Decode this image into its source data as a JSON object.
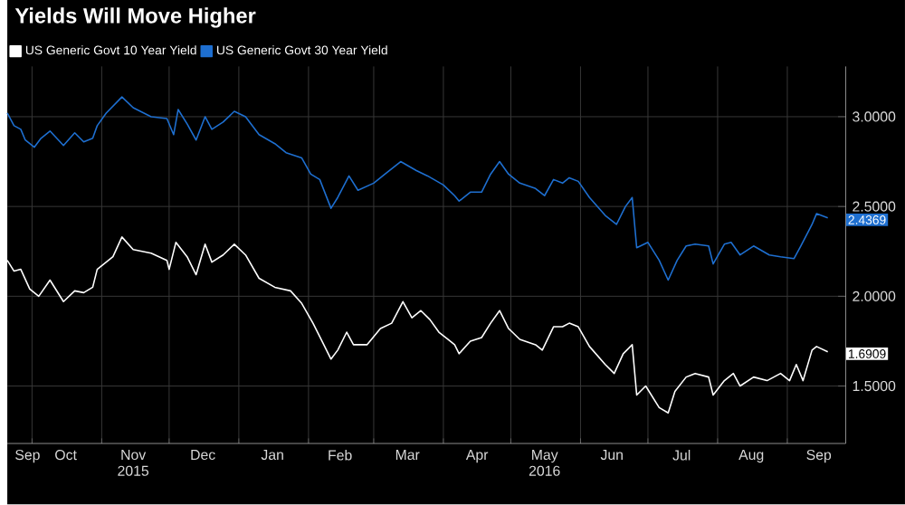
{
  "chart_data": {
    "type": "line",
    "title": "Yields Will Move Higher",
    "x": [
      "2015-09-20",
      "2015-09-23",
      "2015-09-26",
      "2015-09-30",
      "2015-10-04",
      "2015-10-09",
      "2015-10-15",
      "2015-10-20",
      "2015-10-24",
      "2015-10-28",
      "2015-10-30",
      "2015-11-06",
      "2015-11-10",
      "2015-11-15",
      "2015-11-23",
      "2015-11-30",
      "2015-12-01",
      "2015-12-04",
      "2015-12-09",
      "2015-12-13",
      "2015-12-17",
      "2015-12-20",
      "2015-12-25",
      "2015-12-30",
      "2016-01-04",
      "2016-01-10",
      "2016-01-17",
      "2016-01-24",
      "2016-01-29",
      "2016-02-03",
      "2016-02-07",
      "2016-02-11",
      "2016-02-14",
      "2016-02-18",
      "2016-02-21",
      "2016-02-27",
      "2016-03-04",
      "2016-03-09",
      "2016-03-14",
      "2016-03-18",
      "2016-03-22",
      "2016-03-26",
      "2016-03-30",
      "2016-04-03",
      "2016-04-06",
      "2016-04-08",
      "2016-04-13",
      "2016-04-18",
      "2016-04-22",
      "2016-04-26",
      "2016-04-30",
      "2016-05-05",
      "2016-05-12",
      "2016-05-15",
      "2016-05-20",
      "2016-05-24",
      "2016-05-27",
      "2016-05-31",
      "2016-06-05",
      "2016-06-12",
      "2016-06-16",
      "2016-06-20",
      "2016-06-24",
      "2016-06-26",
      "2016-06-30",
      "2016-07-06",
      "2016-07-10",
      "2016-07-13",
      "2016-07-18",
      "2016-07-22",
      "2016-07-28",
      "2016-07-30",
      "2016-08-04",
      "2016-08-08",
      "2016-08-11",
      "2016-08-17",
      "2016-08-23",
      "2016-08-29",
      "2016-09-02",
      "2016-09-05",
      "2016-09-08",
      "2016-09-12",
      "2016-09-14",
      "2016-09-19"
    ],
    "series": [
      {
        "name": "US Generic Govt 10 Year Yield",
        "color": "#ffffff",
        "values": [
          2.2,
          2.14,
          2.15,
          2.04,
          2.0,
          2.09,
          1.97,
          2.03,
          2.02,
          2.05,
          2.15,
          2.22,
          2.33,
          2.26,
          2.24,
          2.2,
          2.15,
          2.3,
          2.22,
          2.12,
          2.29,
          2.19,
          2.23,
          2.29,
          2.23,
          2.1,
          2.05,
          2.03,
          1.96,
          1.85,
          1.75,
          1.65,
          1.7,
          1.8,
          1.73,
          1.73,
          1.82,
          1.85,
          1.97,
          1.88,
          1.92,
          1.87,
          1.8,
          1.76,
          1.73,
          1.68,
          1.75,
          1.77,
          1.85,
          1.92,
          1.82,
          1.76,
          1.73,
          1.7,
          1.83,
          1.83,
          1.85,
          1.83,
          1.72,
          1.62,
          1.57,
          1.68,
          1.73,
          1.45,
          1.5,
          1.38,
          1.35,
          1.47,
          1.55,
          1.57,
          1.55,
          1.45,
          1.53,
          1.57,
          1.5,
          1.55,
          1.53,
          1.57,
          1.53,
          1.62,
          1.53,
          1.7,
          1.72,
          1.6909
        ],
        "value_labels": [
          null,
          null,
          null,
          null,
          null,
          null,
          null,
          null,
          null,
          null,
          null,
          null,
          null,
          null,
          null,
          null,
          null,
          null,
          null,
          null,
          null,
          null,
          null,
          null,
          null,
          null,
          null,
          null,
          null,
          null,
          null,
          null,
          null,
          null,
          null,
          null,
          null,
          null,
          null,
          null,
          null,
          null,
          null,
          null,
          null,
          null,
          null,
          null,
          null,
          null,
          null,
          null,
          null,
          null,
          null,
          null,
          null,
          null,
          null,
          null,
          null,
          null,
          null,
          null,
          null,
          null,
          null,
          null,
          null,
          null,
          null,
          null,
          null,
          null,
          null,
          null,
          null,
          null,
          null,
          null,
          null,
          null,
          null,
          "1.6909"
        ]
      },
      {
        "name": "US Generic Govt 30 Year Yield",
        "color": "#1e6fd0",
        "x": [
          "2015-09-20",
          "2015-09-23",
          "2015-09-26",
          "2015-09-28",
          "2015-10-02",
          "2015-10-05",
          "2015-10-09",
          "2015-10-15",
          "2015-10-20",
          "2015-10-24",
          "2015-10-28",
          "2015-10-30",
          "2015-11-03",
          "2015-11-10",
          "2015-11-15",
          "2015-11-23",
          "2015-11-30",
          "2015-12-03",
          "2015-12-05",
          "2015-12-09",
          "2015-12-13",
          "2015-12-17",
          "2015-12-20",
          "2015-12-25",
          "2015-12-30",
          "2016-01-04",
          "2016-01-10",
          "2016-01-17",
          "2016-01-22",
          "2016-01-29",
          "2016-02-02",
          "2016-02-06",
          "2016-02-11",
          "2016-02-14",
          "2016-02-19",
          "2016-02-23",
          "2016-03-01",
          "2016-03-06",
          "2016-03-13",
          "2016-03-20",
          "2016-03-25",
          "2016-04-01",
          "2016-04-06",
          "2016-04-08",
          "2016-04-13",
          "2016-04-18",
          "2016-04-22",
          "2016-04-26",
          "2016-04-30",
          "2016-05-05",
          "2016-05-12",
          "2016-05-16",
          "2016-05-20",
          "2016-05-24",
          "2016-05-27",
          "2016-05-31",
          "2016-06-05",
          "2016-06-12",
          "2016-06-17",
          "2016-06-21",
          "2016-06-24",
          "2016-06-26",
          "2016-07-01",
          "2016-07-06",
          "2016-07-10",
          "2016-07-14",
          "2016-07-18",
          "2016-07-22",
          "2016-07-28",
          "2016-07-30",
          "2016-08-04",
          "2016-08-07",
          "2016-08-11",
          "2016-08-17",
          "2016-08-24",
          "2016-08-29",
          "2016-09-04",
          "2016-09-07",
          "2016-09-12",
          "2016-09-14",
          "2016-09-19"
        ],
        "values": [
          3.02,
          2.95,
          2.93,
          2.87,
          2.83,
          2.88,
          2.92,
          2.84,
          2.91,
          2.86,
          2.88,
          2.95,
          3.02,
          3.11,
          3.05,
          3.0,
          2.99,
          2.9,
          3.04,
          2.96,
          2.87,
          3.0,
          2.93,
          2.97,
          3.03,
          3.0,
          2.9,
          2.85,
          2.8,
          2.77,
          2.68,
          2.65,
          2.49,
          2.55,
          2.67,
          2.59,
          2.63,
          2.68,
          2.75,
          2.7,
          2.67,
          2.62,
          2.56,
          2.53,
          2.58,
          2.58,
          2.68,
          2.75,
          2.68,
          2.63,
          2.6,
          2.56,
          2.65,
          2.63,
          2.66,
          2.64,
          2.55,
          2.45,
          2.4,
          2.5,
          2.55,
          2.27,
          2.3,
          2.2,
          2.09,
          2.2,
          2.28,
          2.29,
          2.28,
          2.18,
          2.29,
          2.3,
          2.23,
          2.28,
          2.23,
          2.22,
          2.21,
          2.28,
          2.4,
          2.46,
          2.4369
        ],
        "value_labels": [
          null,
          null,
          null,
          null,
          null,
          null,
          null,
          null,
          null,
          null,
          null,
          null,
          null,
          null,
          null,
          null,
          null,
          null,
          null,
          null,
          null,
          null,
          null,
          null,
          null,
          null,
          null,
          null,
          null,
          null,
          null,
          null,
          null,
          null,
          null,
          null,
          null,
          null,
          null,
          null,
          null,
          null,
          null,
          null,
          null,
          null,
          null,
          null,
          null,
          null,
          null,
          null,
          null,
          null,
          null,
          null,
          null,
          null,
          null,
          null,
          null,
          null,
          null,
          null,
          null,
          null,
          null,
          null,
          null,
          null,
          null,
          null,
          null,
          null,
          null,
          null,
          null,
          null,
          null,
          null,
          "2.4369"
        ]
      }
    ],
    "xlim": [
      "2015-09-20",
      "2016-09-27"
    ],
    "xticks": [
      {
        "value": "2015-09-29",
        "label": "Sep"
      },
      {
        "value": "2015-10-01",
        "label": null
      },
      {
        "value": "2015-10-16",
        "label": "Oct"
      },
      {
        "value": "2015-11-01",
        "label": null
      },
      {
        "value": "2015-11-15",
        "label": "Nov 2015"
      },
      {
        "value": "2015-12-01",
        "label": null
      },
      {
        "value": "2015-12-16",
        "label": "Dec"
      },
      {
        "value": "2016-01-01",
        "label": null
      },
      {
        "value": "2016-01-16",
        "label": "Jan"
      },
      {
        "value": "2016-02-01",
        "label": null
      },
      {
        "value": "2016-02-15",
        "label": "Feb"
      },
      {
        "value": "2016-03-01",
        "label": null
      },
      {
        "value": "2016-03-16",
        "label": "Mar"
      },
      {
        "value": "2016-04-01",
        "label": null
      },
      {
        "value": "2016-04-16",
        "label": "Apr"
      },
      {
        "value": "2016-05-01",
        "label": null
      },
      {
        "value": "2016-05-16",
        "label": "May 2016"
      },
      {
        "value": "2016-06-01",
        "label": null
      },
      {
        "value": "2016-06-15",
        "label": "Jun"
      },
      {
        "value": "2016-07-01",
        "label": null
      },
      {
        "value": "2016-07-16",
        "label": "Jul"
      },
      {
        "value": "2016-08-01",
        "label": null
      },
      {
        "value": "2016-08-16",
        "label": "Aug"
      },
      {
        "value": "2016-09-01",
        "label": null
      },
      {
        "value": "2016-09-15",
        "label": "Sep"
      }
    ],
    "ylim": [
      1.18,
      3.28
    ],
    "yticks": [
      {
        "value": 1.5,
        "label": "1.5000"
      },
      {
        "value": 2.0,
        "label": "2.0000"
      },
      {
        "value": 2.5,
        "label": "2.5000"
      },
      {
        "value": 3.0,
        "label": "3.0000"
      }
    ],
    "grid": true,
    "legend": "top left",
    "marker": "none",
    "line_style": "solid"
  }
}
